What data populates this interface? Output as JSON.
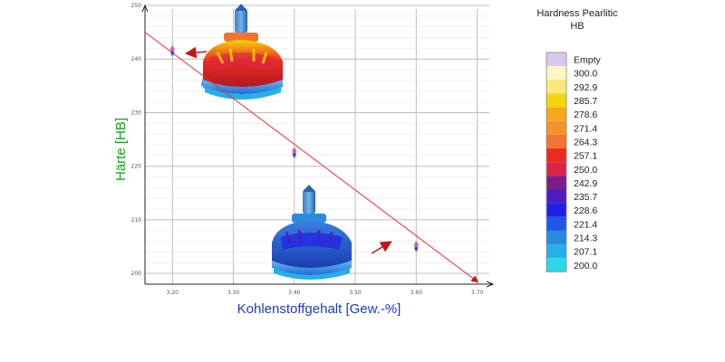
{
  "chart_data": {
    "type": "scatter",
    "xlabel": "Kohlenstoffgehalt [Gew.-%]",
    "ylabel": "Härte [HB]",
    "x_ticks": [
      "3.20",
      "3.30",
      "3.40",
      "3.50",
      "3.60",
      "3.70"
    ],
    "y_ticks": [
      "200",
      "210",
      "220",
      "230",
      "240",
      "250"
    ],
    "xlim": [
      3.155,
      3.72
    ],
    "ylim": [
      198,
      250
    ],
    "grid": true,
    "series": [
      {
        "x": [
          3.2,
          3.4,
          3.6
        ],
        "y": [
          241.5,
          222.5,
          205
        ]
      }
    ],
    "trendline": {
      "x": [
        3.155,
        3.7
      ],
      "y": [
        245,
        198.5
      ]
    },
    "colors": {
      "trendline": "#e83030",
      "arrow": "#c41818",
      "grid": "#bdbdbd",
      "axis": "#222222"
    },
    "legend": {
      "title_line1": "Hardness Pearlitic",
      "title_line2": "HB",
      "position": "right",
      "entries": [
        {
          "label": "Empty",
          "color": "#d9c8ee"
        },
        {
          "label": "300.0",
          "color": "#fbf6c2"
        },
        {
          "label": "292.9",
          "color": "#fbe878"
        },
        {
          "label": "285.7",
          "color": "#f5d60a"
        },
        {
          "label": "278.6",
          "color": "#f5a81e"
        },
        {
          "label": "271.4",
          "color": "#f39428"
        },
        {
          "label": "264.3",
          "color": "#f07530"
        },
        {
          "label": "257.1",
          "color": "#ea2b20"
        },
        {
          "label": "250.0",
          "color": "#d82448"
        },
        {
          "label": "242.9",
          "color": "#7c1d88"
        },
        {
          "label": "235.7",
          "color": "#4d1cc0"
        },
        {
          "label": "228.6",
          "color": "#2020e8"
        },
        {
          "label": "221.4",
          "color": "#1e58e6"
        },
        {
          "label": "214.3",
          "color": "#2a8ae0"
        },
        {
          "label": "207.1",
          "color": "#24b0e8"
        },
        {
          "label": "200.0",
          "color": "#2ad8ea"
        }
      ]
    }
  }
}
